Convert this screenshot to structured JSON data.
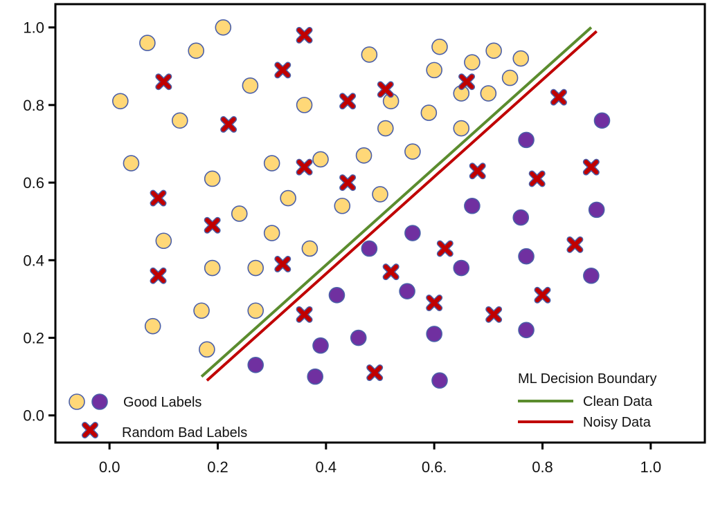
{
  "chart_data": {
    "type": "scatter",
    "xlim": [
      -0.1,
      1.1
    ],
    "ylim": [
      -0.07,
      1.06
    ],
    "x_ticks": [
      {
        "v": 0.0,
        "label": "0.0"
      },
      {
        "v": 0.2,
        "label": "0.2"
      },
      {
        "v": 0.4,
        "label": "0.4"
      },
      {
        "v": 0.6,
        "label": "0.6."
      },
      {
        "v": 0.8,
        "label": "0.8"
      },
      {
        "v": 1.0,
        "label": "1.0"
      }
    ],
    "y_ticks": [
      {
        "v": 0.0,
        "label": "0.0"
      },
      {
        "v": 0.2,
        "label": "0.2"
      },
      {
        "v": 0.4,
        "label": "0.4"
      },
      {
        "v": 0.6,
        "label": "0.6"
      },
      {
        "v": 0.8,
        "label": "0.8"
      },
      {
        "v": 1.0,
        "label": "1.0"
      }
    ],
    "grid": false,
    "colors": {
      "yellow": "#FFD878",
      "purple": "#7030A0",
      "marker_edge": "#4A5FA8",
      "cross": "#C00000",
      "clean_line": "#5B8C2E",
      "noisy_line": "#C00000"
    },
    "series": [
      {
        "marker": "circle",
        "color": "yellow",
        "points": [
          [
            0.21,
            1.0
          ],
          [
            0.07,
            0.96
          ],
          [
            0.16,
            0.94
          ],
          [
            0.02,
            0.81
          ],
          [
            0.26,
            0.85
          ],
          [
            0.13,
            0.76
          ],
          [
            0.04,
            0.65
          ],
          [
            0.36,
            0.8
          ],
          [
            0.48,
            0.93
          ],
          [
            0.61,
            0.95
          ],
          [
            0.67,
            0.91
          ],
          [
            0.71,
            0.94
          ],
          [
            0.76,
            0.92
          ],
          [
            0.6,
            0.89
          ],
          [
            0.74,
            0.87
          ],
          [
            0.7,
            0.83
          ],
          [
            0.65,
            0.83
          ],
          [
            0.52,
            0.81
          ],
          [
            0.59,
            0.78
          ],
          [
            0.51,
            0.74
          ],
          [
            0.65,
            0.74
          ],
          [
            0.56,
            0.68
          ],
          [
            0.47,
            0.67
          ],
          [
            0.39,
            0.66
          ],
          [
            0.3,
            0.65
          ],
          [
            0.19,
            0.61
          ],
          [
            0.33,
            0.56
          ],
          [
            0.5,
            0.57
          ],
          [
            0.43,
            0.54
          ],
          [
            0.24,
            0.52
          ],
          [
            0.3,
            0.47
          ],
          [
            0.1,
            0.45
          ],
          [
            0.37,
            0.43
          ],
          [
            0.19,
            0.38
          ],
          [
            0.27,
            0.38
          ],
          [
            0.08,
            0.23
          ],
          [
            0.17,
            0.27
          ],
          [
            0.27,
            0.27
          ],
          [
            0.18,
            0.17
          ]
        ]
      },
      {
        "marker": "circle",
        "color": "purple",
        "points": [
          [
            0.91,
            0.76
          ],
          [
            0.77,
            0.71
          ],
          [
            0.67,
            0.54
          ],
          [
            0.76,
            0.51
          ],
          [
            0.9,
            0.53
          ],
          [
            0.56,
            0.47
          ],
          [
            0.48,
            0.43
          ],
          [
            0.77,
            0.41
          ],
          [
            0.65,
            0.38
          ],
          [
            0.89,
            0.36
          ],
          [
            0.55,
            0.32
          ],
          [
            0.42,
            0.31
          ],
          [
            0.46,
            0.2
          ],
          [
            0.39,
            0.18
          ],
          [
            0.6,
            0.21
          ],
          [
            0.77,
            0.22
          ],
          [
            0.27,
            0.13
          ],
          [
            0.38,
            0.1
          ],
          [
            0.61,
            0.09
          ]
        ]
      },
      {
        "marker": "x",
        "color": "cross",
        "points": [
          [
            0.36,
            0.98
          ],
          [
            0.32,
            0.89
          ],
          [
            0.1,
            0.86
          ],
          [
            0.51,
            0.84
          ],
          [
            0.44,
            0.81
          ],
          [
            0.66,
            0.86
          ],
          [
            0.83,
            0.82
          ],
          [
            0.22,
            0.75
          ],
          [
            0.36,
            0.64
          ],
          [
            0.44,
            0.6
          ],
          [
            0.68,
            0.63
          ],
          [
            0.79,
            0.61
          ],
          [
            0.89,
            0.64
          ],
          [
            0.09,
            0.56
          ],
          [
            0.19,
            0.49
          ],
          [
            0.62,
            0.43
          ],
          [
            0.86,
            0.44
          ],
          [
            0.32,
            0.39
          ],
          [
            0.52,
            0.37
          ],
          [
            0.09,
            0.36
          ],
          [
            0.8,
            0.31
          ],
          [
            0.6,
            0.29
          ],
          [
            0.36,
            0.26
          ],
          [
            0.71,
            0.26
          ],
          [
            0.49,
            0.11
          ]
        ]
      }
    ],
    "lines": [
      {
        "name": "Clean Data",
        "color": "clean_line",
        "x": [
          0.17,
          0.89
        ],
        "y": [
          0.1,
          1.0
        ]
      },
      {
        "name": "Noisy Data",
        "color": "noisy_line",
        "x": [
          0.18,
          0.9
        ],
        "y": [
          0.09,
          0.99
        ]
      }
    ],
    "legend": {
      "left_entries": [
        {
          "label": "Good Labels",
          "markers": [
            "circle-yellow",
            "circle-purple"
          ]
        },
        {
          "label": "Random Bad Labels",
          "markers": [
            "x-cross"
          ]
        }
      ],
      "right_title": "ML Decision Boundary",
      "right_entries": [
        {
          "label": "Clean Data",
          "color": "clean_line"
        },
        {
          "label": "Noisy Data",
          "color": "noisy_line"
        }
      ],
      "placement_left": "bottom-left",
      "placement_right": "bottom-right"
    }
  }
}
